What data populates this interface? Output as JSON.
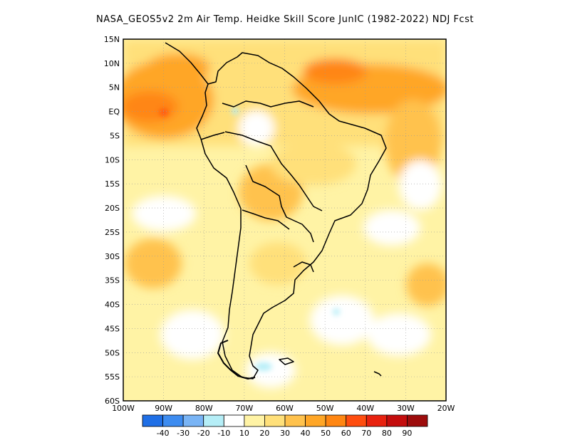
{
  "title": "NASA_GEOS5v2  2m Air Temp. Heidke Skill Score JunIC (1982-2022) NDJ Fcst",
  "map": {
    "lon_range": [
      -100,
      -20
    ],
    "lat_range": [
      -60,
      15
    ],
    "grid": "dotted",
    "lat_labels": [
      "15N",
      "10N",
      "5N",
      "EQ",
      "5S",
      "10S",
      "15S",
      "20S",
      "25S",
      "30S",
      "35S",
      "40S",
      "45S",
      "50S",
      "55S",
      "60S"
    ],
    "lon_labels": [
      "100W",
      "90W",
      "80W",
      "70W",
      "60W",
      "50W",
      "40W",
      "30W",
      "20W"
    ]
  },
  "colorbar": {
    "labels": [
      "-40",
      "-30",
      "-20",
      "-10",
      "10",
      "20",
      "30",
      "40",
      "50",
      "60",
      "70",
      "80",
      "90"
    ],
    "colors": [
      "#1f6fe6",
      "#3d8cf0",
      "#79b4f5",
      "#b5eef7",
      "#ffffff",
      "#fff3a5",
      "#ffe07a",
      "#ffc24d",
      "#ffa626",
      "#ff8612",
      "#ff4d0f",
      "#e8220f",
      "#c40d0d",
      "#9d0c0c"
    ]
  },
  "features": {
    "coastline_color": "#000000"
  }
}
